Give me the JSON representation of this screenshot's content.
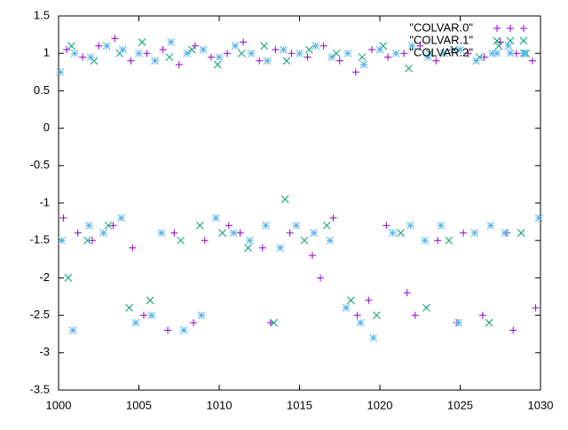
{
  "chart_data": {
    "type": "scatter",
    "xlim": [
      1000,
      1030
    ],
    "ylim": [
      -3.5,
      1.5
    ],
    "xticks": [
      1000,
      1005,
      1010,
      1015,
      1020,
      1025,
      1030
    ],
    "yticks": [
      1.5,
      1,
      0.5,
      0,
      -0.5,
      -1,
      -1.5,
      -2,
      -2.5,
      -3,
      -3.5
    ],
    "legend": "top-right",
    "series": [
      {
        "name": "\"COLVAR.0\"",
        "color": "#9400d3",
        "marker": "plus",
        "x": [
          1000.5,
          1001.5,
          1002.5,
          1003.5,
          1004.5,
          1005.5,
          1006.5,
          1007.5,
          1008.5,
          1009.5,
          1010.5,
          1011.5,
          1012.5,
          1013.5,
          1014.5,
          1015.5,
          1016.5,
          1017.5,
          1018.5,
          1019.5,
          1020.5,
          1021.5,
          1022.5,
          1023.5,
          1024.5,
          1025.5,
          1026.5,
          1027.5,
          1028.5,
          1029.5,
          1000.3,
          1001.2,
          1002.1,
          1003.4,
          1004.6,
          1005.3,
          1006.8,
          1007.2,
          1008.4,
          1009.1,
          1010.6,
          1011.3,
          1012.7,
          1013.2,
          1014.4,
          1015.8,
          1016.3,
          1017.1,
          1018.6,
          1019.3,
          1020.4,
          1021.7,
          1022.2,
          1023.6,
          1024.8,
          1025.2,
          1026.4,
          1027.9,
          1028.3,
          1029.7
        ],
        "y": [
          1.05,
          0.95,
          1.1,
          1.2,
          0.9,
          1.0,
          1.05,
          0.85,
          1.1,
          0.95,
          1.0,
          1.15,
          0.9,
          1.05,
          1.0,
          0.95,
          1.1,
          0.9,
          0.75,
          1.05,
          0.95,
          1.0,
          1.1,
          0.9,
          1.05,
          1.0,
          0.95,
          1.15,
          1.0,
          0.9,
          -1.2,
          -1.4,
          -1.5,
          -1.3,
          -1.6,
          -2.5,
          -2.7,
          -1.4,
          -2.6,
          -1.5,
          -1.3,
          -1.4,
          -1.6,
          -2.6,
          -1.4,
          -1.7,
          -2.0,
          -1.2,
          -2.5,
          -2.3,
          -1.3,
          -2.2,
          -2.5,
          -1.5,
          -2.6,
          -1.4,
          -2.5,
          -1.4,
          -2.7,
          -2.4
        ]
      },
      {
        "name": "\"COLVAR.1\"",
        "color": "#009e73",
        "marker": "cross",
        "x": [
          1000.8,
          1002.2,
          1003.8,
          1005.2,
          1006.9,
          1008.3,
          1009.9,
          1011.4,
          1012.8,
          1014.2,
          1015.6,
          1017.3,
          1018.9,
          1020.2,
          1021.8,
          1023.1,
          1024.6,
          1026.2,
          1027.4,
          1029.1,
          1000.6,
          1001.8,
          1003.1,
          1004.4,
          1005.7,
          1007.6,
          1008.8,
          1010.2,
          1011.8,
          1013.4,
          1014.1,
          1015.3,
          1016.7,
          1018.2,
          1019.8,
          1021.3,
          1022.9,
          1024.3,
          1026.8,
          1028.8
        ],
        "y": [
          1.1,
          0.9,
          1.0,
          1.15,
          0.95,
          1.05,
          0.85,
          1.0,
          1.1,
          0.9,
          1.05,
          1.0,
          0.95,
          1.1,
          0.8,
          1.0,
          1.05,
          0.95,
          1.1,
          1.0,
          -2.0,
          -1.5,
          -1.3,
          -2.4,
          -2.3,
          -1.5,
          -1.3,
          -1.4,
          -1.6,
          -2.6,
          -0.95,
          -1.5,
          -1.3,
          -2.3,
          -2.5,
          -1.4,
          -2.4,
          -1.5,
          -2.6,
          -1.4
        ]
      },
      {
        "name": "\"COLVAR.2\"",
        "color": "#56b4e9",
        "marker": "star",
        "x": [
          1000.1,
          1001.0,
          1002.0,
          1003.0,
          1004.0,
          1005.0,
          1006.0,
          1007.0,
          1008.0,
          1009.0,
          1010.0,
          1011.0,
          1012.0,
          1013.0,
          1014.0,
          1015.0,
          1016.0,
          1017.0,
          1018.0,
          1019.0,
          1020.0,
          1021.0,
          1022.0,
          1023.0,
          1024.0,
          1025.0,
          1026.0,
          1027.0,
          1028.0,
          1029.0,
          1000.2,
          1000.9,
          1001.9,
          1002.8,
          1003.9,
          1004.8,
          1005.8,
          1006.4,
          1007.8,
          1008.9,
          1009.8,
          1010.9,
          1011.9,
          1012.9,
          1013.8,
          1014.8,
          1015.9,
          1016.9,
          1017.9,
          1018.8,
          1019.6,
          1020.8,
          1021.9,
          1022.8,
          1023.8,
          1024.9,
          1025.9,
          1026.9,
          1027.8,
          1029.9
        ],
        "y": [
          0.75,
          1.0,
          0.95,
          1.1,
          1.05,
          1.0,
          0.9,
          1.15,
          1.0,
          1.05,
          0.95,
          1.1,
          1.0,
          0.9,
          1.05,
          1.0,
          1.1,
          0.95,
          1.0,
          0.85,
          1.05,
          1.0,
          1.1,
          0.95,
          1.0,
          1.05,
          0.9,
          1.0,
          1.1,
          1.0,
          -1.5,
          -2.7,
          -1.3,
          -1.4,
          -1.2,
          -2.6,
          -2.5,
          -1.4,
          -2.7,
          -2.5,
          -1.2,
          -1.4,
          -1.5,
          -1.3,
          -1.6,
          -1.3,
          -1.4,
          -1.5,
          -2.4,
          -2.6,
          -2.8,
          -1.4,
          -1.3,
          -1.5,
          -1.3,
          -2.6,
          -1.4,
          -1.3,
          -1.4,
          -1.2
        ]
      }
    ]
  }
}
